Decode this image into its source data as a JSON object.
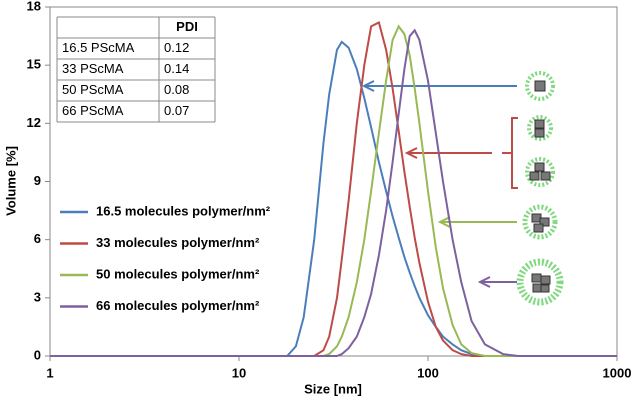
{
  "chart_data": {
    "type": "line",
    "xlabel": "Size [nm]",
    "ylabel": "Volume [%]",
    "xscale": "log",
    "xlim": [
      1,
      1000
    ],
    "xticks": [
      1,
      10,
      100,
      1000
    ],
    "ylim": [
      0,
      18
    ],
    "yticks": [
      0,
      3,
      6,
      9,
      12,
      15,
      18
    ],
    "legend": "left",
    "x": [
      1,
      15,
      18,
      20,
      22,
      25,
      28,
      30,
      33,
      35,
      38,
      42,
      46,
      50,
      55,
      60,
      65,
      70,
      75,
      80,
      85,
      90,
      100,
      110,
      120,
      135,
      150,
      170,
      200,
      250,
      300,
      1000
    ],
    "series": [
      {
        "name": "16.5 molecules polymer/nm²",
        "color": "#4a7ebb",
        "values": [
          0,
          0,
          0,
          0.5,
          2,
          6,
          11,
          13.5,
          15.8,
          16.2,
          15.9,
          14.8,
          13.3,
          11.8,
          10,
          8.5,
          7.2,
          6.1,
          5.1,
          4.3,
          3.6,
          3,
          2.1,
          1.5,
          1.0,
          0.6,
          0.3,
          0.1,
          0,
          0,
          0,
          0
        ]
      },
      {
        "name": "33 molecules polymer/nm²",
        "color": "#be4b48",
        "values": [
          0,
          0,
          0,
          0,
          0,
          0,
          0.3,
          1,
          3,
          5,
          8,
          12,
          15,
          17,
          17.2,
          15.8,
          13.8,
          11.6,
          9.5,
          7.7,
          6.1,
          4.8,
          2.8,
          1.5,
          0.8,
          0.3,
          0.1,
          0,
          0,
          0,
          0,
          0
        ]
      },
      {
        "name": "50 molecules polymer/nm²",
        "color": "#98b954",
        "values": [
          0,
          0,
          0,
          0,
          0,
          0,
          0,
          0.1,
          0.5,
          1,
          2,
          3.8,
          6,
          8.5,
          11.5,
          14.2,
          16.3,
          17,
          16.6,
          15.5,
          13.8,
          12,
          8.5,
          5.6,
          3.5,
          1.6,
          0.6,
          0.15,
          0,
          0,
          0,
          0
        ]
      },
      {
        "name": "66 molecules polymer/nm²",
        "color": "#7d60a0",
        "values": [
          0,
          0,
          0,
          0,
          0,
          0,
          0,
          0,
          0,
          0.1,
          0.4,
          1,
          2,
          3.2,
          5.2,
          7.5,
          10,
          12.5,
          14.8,
          16.5,
          16.8,
          16.3,
          14.2,
          11.5,
          9,
          6,
          3.8,
          1.8,
          0.6,
          0.1,
          0,
          0
        ]
      }
    ],
    "table": {
      "header": [
        "PDI"
      ],
      "rows": [
        [
          "16.5 PScMA",
          "0.12"
        ],
        [
          "33 PScMA",
          "0.14"
        ],
        [
          "50 PScMA",
          "0.08"
        ],
        [
          "66 PScMA",
          "0.07"
        ]
      ]
    }
  }
}
